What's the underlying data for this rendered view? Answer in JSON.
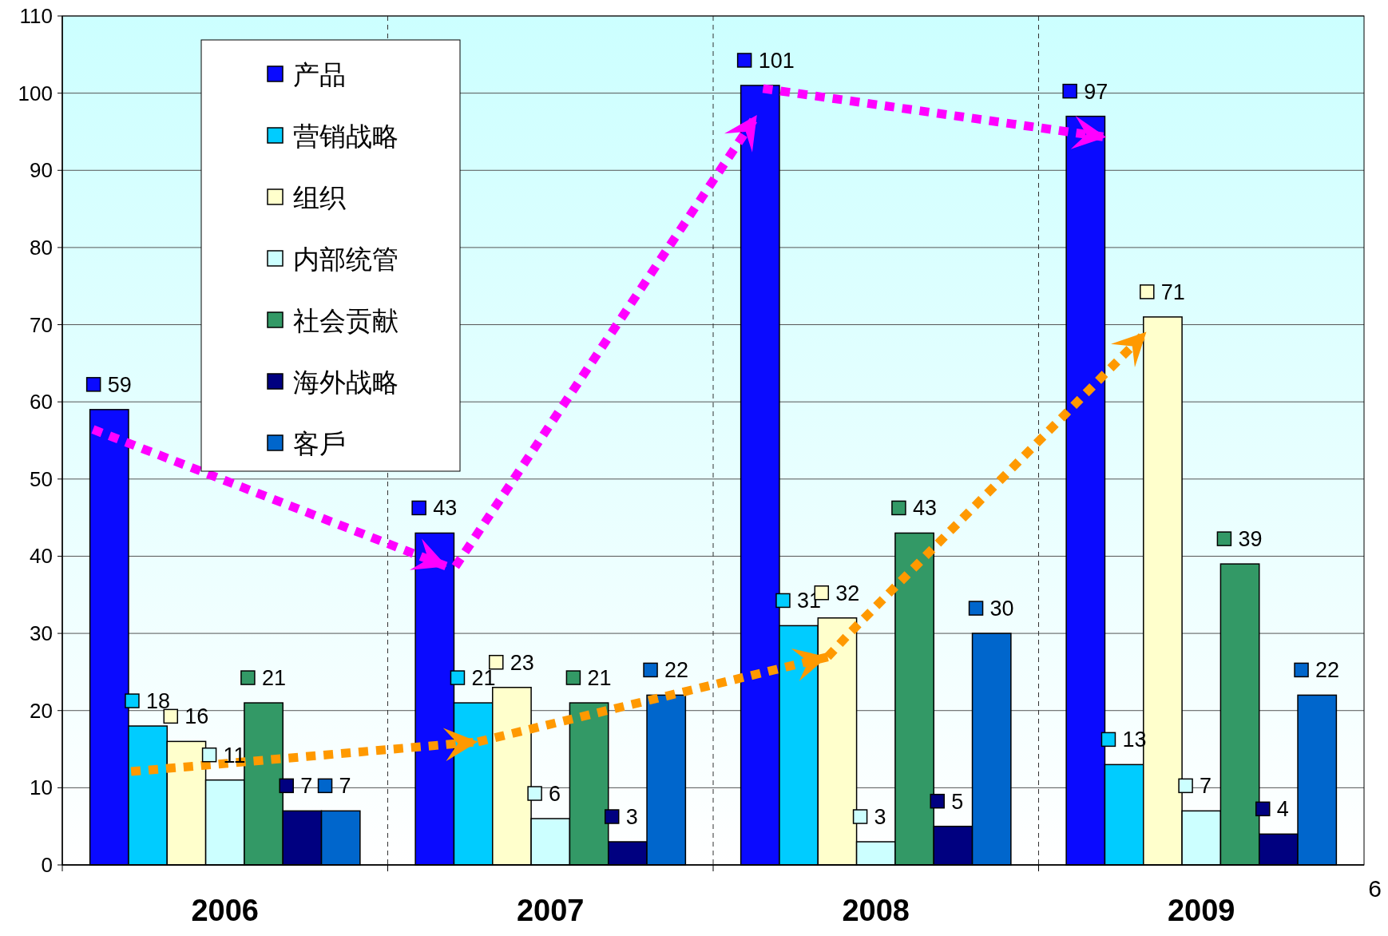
{
  "chart_data": {
    "type": "bar",
    "categories": [
      "2006",
      "2007",
      "2008",
      "2009"
    ],
    "series": [
      {
        "name": "产品",
        "color": "#0a0aff",
        "values": [
          59,
          43,
          101,
          97
        ]
      },
      {
        "name": "营销战略",
        "color": "#00ccff",
        "values": [
          18,
          21,
          31,
          13
        ]
      },
      {
        "name": "组织",
        "color": "#ffffcc",
        "values": [
          16,
          23,
          32,
          71
        ]
      },
      {
        "name": "内部统管",
        "color": "#ccffff",
        "values": [
          11,
          6,
          3,
          7
        ]
      },
      {
        "name": "社会贡献",
        "color": "#339966",
        "values": [
          21,
          21,
          43,
          39
        ]
      },
      {
        "name": "海外战略",
        "color": "#000080",
        "values": [
          7,
          3,
          5,
          4
        ]
      },
      {
        "name": "客戶",
        "color": "#0066cc",
        "values": [
          7,
          22,
          30,
          22
        ]
      }
    ],
    "ylim": [
      0,
      110
    ],
    "yticks": [
      0,
      10,
      20,
      30,
      40,
      50,
      60,
      70,
      80,
      90,
      100,
      110
    ],
    "grid": "y",
    "legend": "top left",
    "data_labels": true,
    "annotations": [
      "6"
    ]
  }
}
